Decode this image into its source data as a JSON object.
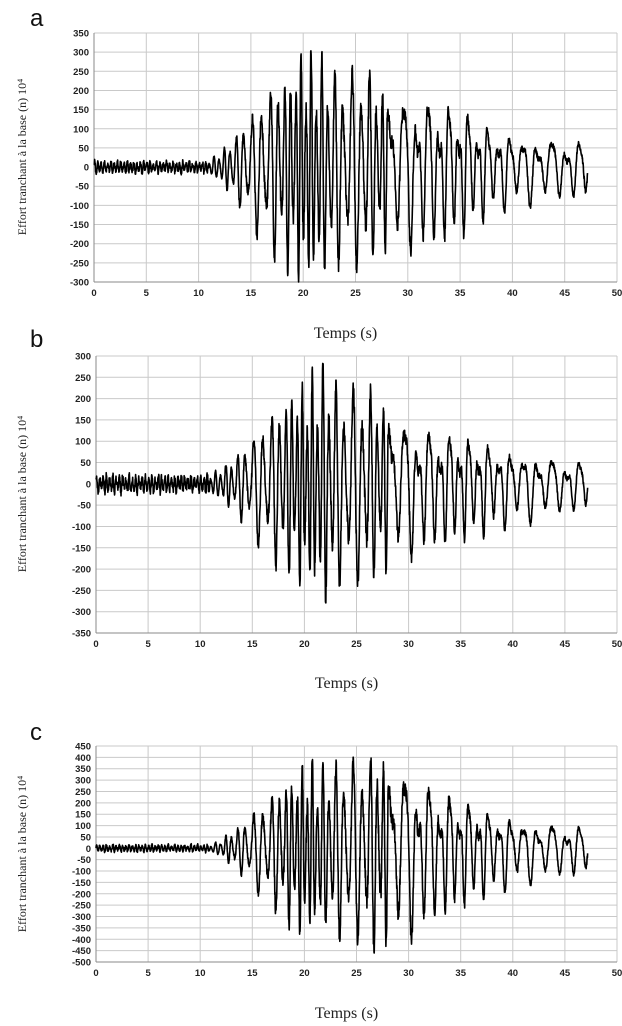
{
  "chart_data": [
    {
      "type": "line",
      "panel": "a",
      "ylabel": "Effort tranchant à la base (n) 10⁴",
      "xlabel": "Temps (s)",
      "xlim": [
        0,
        50
      ],
      "ylim": [
        -300,
        350
      ],
      "xticks": [
        0,
        5,
        10,
        15,
        20,
        25,
        30,
        35,
        40,
        45,
        50
      ],
      "yticks": [
        350,
        300,
        250,
        200,
        150,
        100,
        50,
        0,
        -50,
        -100,
        -150,
        -200,
        -250,
        -300
      ],
      "grid": true,
      "series": [
        {
          "x": [
            0,
            10.8,
            12,
            13,
            14,
            15,
            16,
            17,
            18,
            19,
            20,
            21,
            22,
            23,
            24,
            25,
            26,
            27,
            28,
            29,
            30,
            31,
            32,
            33,
            34,
            35,
            36,
            37,
            38,
            39,
            40,
            41,
            42,
            43,
            44,
            45,
            46,
            47.2
          ],
          "y": [
            15,
            15,
            40,
            70,
            110,
            150,
            200,
            240,
            260,
            285,
            320,
            300,
            290,
            270,
            260,
            270,
            280,
            250,
            220,
            210,
            200,
            195,
            190,
            185,
            175,
            170,
            150,
            130,
            110,
            100,
            95,
            90,
            85,
            80,
            78,
            75,
            70,
            85
          ]
        }
      ]
    },
    {
      "type": "line",
      "panel": "b",
      "ylabel": "Effort tranchant à la base (n) 10⁴",
      "xlabel": "Temps (s)",
      "xlim": [
        0,
        50
      ],
      "ylim": [
        -350,
        300
      ],
      "xticks": [
        0,
        5,
        10,
        15,
        20,
        25,
        30,
        35,
        40,
        45,
        50
      ],
      "yticks": [
        300,
        250,
        200,
        150,
        100,
        50,
        0,
        -50,
        -100,
        -150,
        -200,
        -250,
        -300,
        -350
      ],
      "grid": true,
      "series": [
        {
          "x": [
            0,
            10.8,
            12,
            13,
            14,
            15,
            16,
            17,
            18,
            19,
            20,
            21,
            22,
            23,
            24,
            25,
            26,
            27,
            28,
            29,
            30,
            31,
            32,
            33,
            34,
            35,
            36,
            37,
            38,
            39,
            40,
            41,
            42,
            43,
            44,
            45,
            46,
            47.2
          ],
          "y": [
            20,
            20,
            40,
            60,
            90,
            120,
            160,
            190,
            210,
            240,
            255,
            260,
            300,
            250,
            240,
            250,
            245,
            220,
            200,
            170,
            160,
            150,
            140,
            135,
            130,
            120,
            115,
            110,
            100,
            90,
            85,
            80,
            75,
            70,
            65,
            60,
            55,
            65
          ]
        }
      ]
    },
    {
      "type": "line",
      "panel": "c",
      "ylabel": "Effort tranchant à la base (n) 10⁴",
      "xlabel": "Temps (s)",
      "xlim": [
        0,
        50
      ],
      "ylim": [
        -500,
        450
      ],
      "xticks": [
        0,
        5,
        10,
        15,
        20,
        25,
        30,
        35,
        40,
        45,
        50
      ],
      "yticks": [
        450,
        400,
        350,
        300,
        250,
        200,
        150,
        100,
        50,
        0,
        -50,
        -100,
        -150,
        -200,
        -250,
        -300,
        -350,
        -400,
        -450,
        -500
      ],
      "grid": true,
      "series": [
        {
          "x": [
            0,
            11,
            12,
            13,
            14,
            15,
            16,
            17,
            18,
            19,
            20,
            21,
            22,
            23,
            24,
            25,
            26,
            27,
            28,
            29,
            30,
            31,
            32,
            33,
            34,
            35,
            36,
            37,
            38,
            39,
            40,
            41,
            42,
            43,
            44,
            45,
            46,
            47.2
          ],
          "y": [
            15,
            15,
            40,
            80,
            120,
            170,
            220,
            270,
            320,
            370,
            400,
            390,
            380,
            400,
            410,
            420,
            430,
            480,
            410,
            390,
            370,
            330,
            300,
            280,
            260,
            240,
            220,
            200,
            180,
            160,
            150,
            140,
            130,
            120,
            115,
            110,
            105,
            110
          ]
        }
      ]
    }
  ]
}
